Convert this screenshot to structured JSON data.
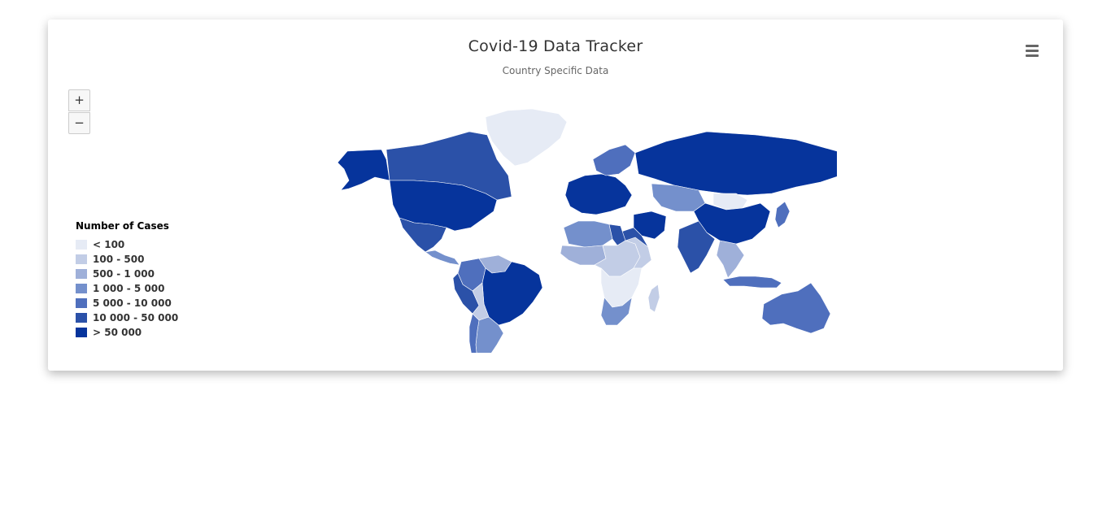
{
  "header": {
    "title": "Covid-19 Data Tracker",
    "subtitle": "Country Specific Data"
  },
  "controls": {
    "zoom_in_label": "+",
    "zoom_out_label": "−",
    "menu_icon": "hamburger-menu-icon"
  },
  "legend": {
    "title": "Number of Cases",
    "items": [
      {
        "label": "< 100",
        "color": "#e6ebf5"
      },
      {
        "label": "100 - 500",
        "color": "#c2cde6"
      },
      {
        "label": "500 - 1 000",
        "color": "#9fb0d9"
      },
      {
        "label": "1 000 - 5 000",
        "color": "#7490cc"
      },
      {
        "label": "5 000 - 10 000",
        "color": "#4f6fbd"
      },
      {
        "label": "10 000 - 50 000",
        "color": "#2b51a8"
      },
      {
        "label": "> 50 000",
        "color": "#06349c"
      }
    ]
  },
  "colors": {
    "border": "#cccccc",
    "no_data": "#f7f7f7"
  },
  "map_data": {
    "type": "choropleth",
    "regions": [
      {
        "name": "Alaska / United States",
        "bin": 6
      },
      {
        "name": "Canada",
        "bin": 5
      },
      {
        "name": "United States",
        "bin": 6
      },
      {
        "name": "Greenland",
        "bin": 0
      },
      {
        "name": "Mexico",
        "bin": 5
      },
      {
        "name": "Central America",
        "bin": 3
      },
      {
        "name": "Colombia",
        "bin": 4
      },
      {
        "name": "Venezuela",
        "bin": 2
      },
      {
        "name": "Peru",
        "bin": 5
      },
      {
        "name": "Brazil",
        "bin": 6
      },
      {
        "name": "Bolivia",
        "bin": 1
      },
      {
        "name": "Argentina",
        "bin": 3
      },
      {
        "name": "Chile",
        "bin": 4
      },
      {
        "name": "Western Europe",
        "bin": 6
      },
      {
        "name": "Scandinavia",
        "bin": 4
      },
      {
        "name": "Russia",
        "bin": 6
      },
      {
        "name": "Kazakhstan",
        "bin": 3
      },
      {
        "name": "Mongolia",
        "bin": 0
      },
      {
        "name": "China",
        "bin": 6
      },
      {
        "name": "Iran",
        "bin": 6
      },
      {
        "name": "Saudi Arabia",
        "bin": 5
      },
      {
        "name": "India",
        "bin": 5
      },
      {
        "name": "Southeast Asia",
        "bin": 2
      },
      {
        "name": "Indonesia",
        "bin": 4
      },
      {
        "name": "Japan",
        "bin": 4
      },
      {
        "name": "North Africa",
        "bin": 3
      },
      {
        "name": "Egypt",
        "bin": 5
      },
      {
        "name": "West Africa",
        "bin": 2
      },
      {
        "name": "Central Africa",
        "bin": 1
      },
      {
        "name": "East Africa",
        "bin": 1
      },
      {
        "name": "Southern Africa",
        "bin": 0
      },
      {
        "name": "South Africa",
        "bin": 3
      },
      {
        "name": "Madagascar",
        "bin": 1
      },
      {
        "name": "Australia",
        "bin": 4
      },
      {
        "name": "New Zealand",
        "bin": 3
      }
    ]
  }
}
